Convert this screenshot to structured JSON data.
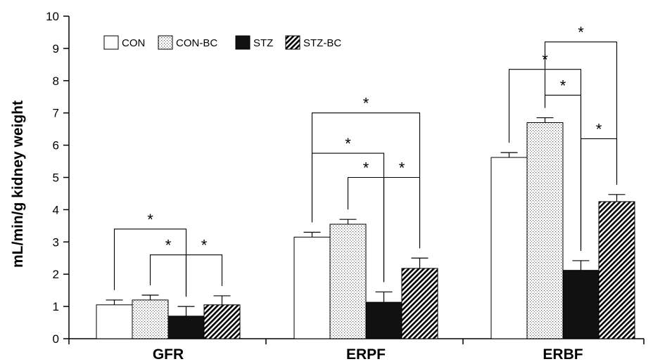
{
  "chart_data": {
    "type": "bar",
    "title": "",
    "xlabel": "",
    "ylabel": "mL/min/g kidney weight",
    "ylim": [
      0,
      10
    ],
    "yticks": [
      0,
      1,
      2,
      3,
      4,
      5,
      6,
      7,
      8,
      9,
      10
    ],
    "categories": [
      "GFR",
      "ERPF",
      "ERBF"
    ],
    "legend_position": "top-left",
    "series": [
      {
        "name": "CON",
        "fill": "white",
        "values": [
          1.05,
          3.15,
          5.62
        ],
        "errors": [
          0.15,
          0.15,
          0.15
        ]
      },
      {
        "name": "CON-BC",
        "fill": "dots",
        "values": [
          1.2,
          3.55,
          6.7
        ],
        "errors": [
          0.15,
          0.15,
          0.15
        ]
      },
      {
        "name": "STZ",
        "fill": "black",
        "values": [
          0.7,
          1.13,
          2.12
        ],
        "errors": [
          0.3,
          0.32,
          0.3
        ]
      },
      {
        "name": "STZ-BC",
        "fill": "hatch",
        "values": [
          1.05,
          2.18,
          4.25
        ],
        "errors": [
          0.28,
          0.32,
          0.22
        ]
      }
    ],
    "significance_marker": "*",
    "significance_brackets": [
      {
        "category": "GFR",
        "from": "CON",
        "to": "STZ",
        "level": 3.4
      },
      {
        "category": "GFR",
        "from": "CON-BC",
        "to": "STZ",
        "level": 2.6
      },
      {
        "category": "GFR",
        "from": "STZ",
        "to": "STZ-BC",
        "level": 2.6
      },
      {
        "category": "ERPF",
        "from": "CON",
        "to": "STZ",
        "level": 5.75
      },
      {
        "category": "ERPF",
        "from": "CON-BC",
        "to": "STZ",
        "level": 5.0
      },
      {
        "category": "ERPF",
        "from": "STZ",
        "to": "STZ-BC",
        "level": 5.0
      },
      {
        "category": "ERPF",
        "from": "CON",
        "to": "STZ-BC",
        "level": 7.0
      },
      {
        "category": "ERBF",
        "from": "CON",
        "to": "STZ",
        "level": 8.35
      },
      {
        "category": "ERBF",
        "from": "CON-BC",
        "to": "STZ",
        "level": 7.55
      },
      {
        "category": "ERBF",
        "from": "STZ",
        "to": "STZ-BC",
        "level": 6.2
      },
      {
        "category": "ERBF",
        "from": "CON-BC",
        "to": "STZ-BC",
        "level": 9.2
      }
    ]
  }
}
